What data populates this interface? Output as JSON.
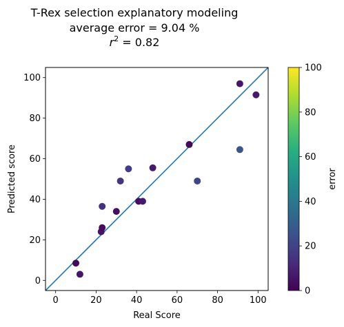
{
  "chart_data": {
    "type": "scatter",
    "title_lines": [
      "T-Rex selection explanatory modeling",
      "average error = 9.04 %"
    ],
    "r2_label": {
      "symbol": "r",
      "superscript": "2",
      "suffix": " = 0.82"
    },
    "xlabel": "Real Score",
    "ylabel": "Predicted score",
    "xlim": [
      -5,
      105
    ],
    "ylim": [
      -5,
      105
    ],
    "xticks": [
      "0",
      "20",
      "40",
      "60",
      "80",
      "100"
    ],
    "yticks": [
      "0",
      "20",
      "40",
      "60",
      "80",
      "100"
    ],
    "identity_line": true,
    "line_color": "#1f77b4",
    "colorbar": {
      "label": "error",
      "range": [
        0,
        100
      ],
      "ticks": [
        "0",
        "20",
        "40",
        "60",
        "80",
        "100"
      ],
      "colormap": "viridis"
    },
    "points": [
      {
        "x": 10,
        "y": 8.5,
        "error": 2
      },
      {
        "x": 12,
        "y": 3,
        "error": 6
      },
      {
        "x": 22.5,
        "y": 24,
        "error": 5
      },
      {
        "x": 23,
        "y": 26,
        "error": 3
      },
      {
        "x": 23,
        "y": 36.5,
        "error": 14
      },
      {
        "x": 30,
        "y": 34,
        "error": 4
      },
      {
        "x": 32,
        "y": 49,
        "error": 15
      },
      {
        "x": 36,
        "y": 55,
        "error": 18
      },
      {
        "x": 41,
        "y": 39,
        "error": 3
      },
      {
        "x": 43,
        "y": 39,
        "error": 7
      },
      {
        "x": 48,
        "y": 55.5,
        "error": 7
      },
      {
        "x": 66,
        "y": 67,
        "error": 2
      },
      {
        "x": 70,
        "y": 49,
        "error": 21
      },
      {
        "x": 91,
        "y": 97,
        "error": 6
      },
      {
        "x": 91,
        "y": 64.5,
        "error": 27
      },
      {
        "x": 99,
        "y": 91.5,
        "error": 7
      }
    ]
  }
}
